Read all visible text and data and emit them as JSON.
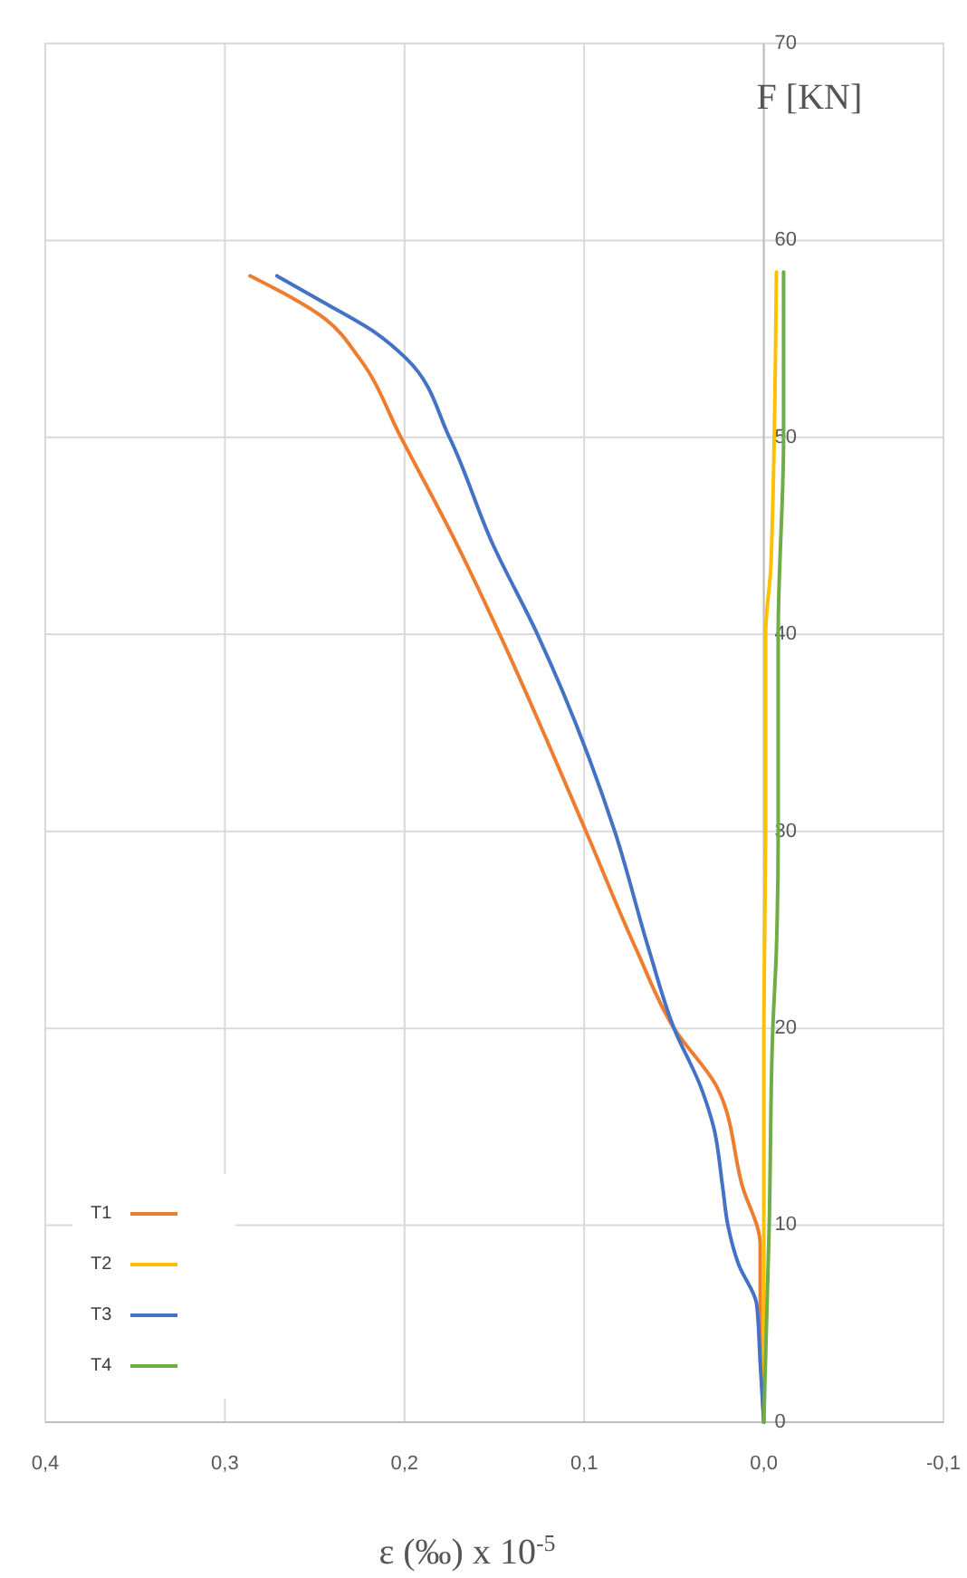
{
  "chart_data": {
    "type": "line",
    "xlabel": "ε (‰) x 10$^{-5}$",
    "ylabel": "F [KN]",
    "xlim": [
      0.4,
      -0.1
    ],
    "ylim": [
      0,
      70
    ],
    "xticks": [
      {
        "value": 0.4,
        "label": "0,4"
      },
      {
        "value": 0.3,
        "label": "0,3"
      },
      {
        "value": 0.2,
        "label": "0,2"
      },
      {
        "value": 0.1,
        "label": "0,1"
      },
      {
        "value": 0,
        "label": "0,0"
      },
      {
        "value": -0.1,
        "label": "-0,1"
      }
    ],
    "yticks": [
      0,
      10,
      20,
      30,
      40,
      50,
      60,
      70
    ],
    "grid": true,
    "legend": "bottom left",
    "marker": "none",
    "line_style": "solid",
    "series": [
      {
        "name": "T1",
        "color": "#ed7d31",
        "x": [
          0,
          0.002,
          0.002,
          0.012,
          0.026,
          0.05,
          0.071,
          0.099,
          0.147,
          0.171,
          0.202,
          0.225,
          0.244,
          0.286
        ],
        "values": [
          0,
          5,
          9,
          12,
          17,
          20,
          24,
          30,
          40,
          44.6,
          50,
          54,
          56,
          58.2
        ]
      },
      {
        "name": "T2",
        "color": "#ffc000",
        "x": [
          0,
          0,
          -0.001,
          -0.001,
          -0.004,
          -0.007
        ],
        "values": [
          0,
          20,
          30,
          40,
          43.6,
          58.4
        ]
      },
      {
        "name": "T3",
        "color": "#4472c4",
        "x": [
          0,
          0.002,
          0.004,
          0.014,
          0.02,
          0.023,
          0.028,
          0.035,
          0.05,
          0.064,
          0.083,
          0.126,
          0.151,
          0.175,
          0.199,
          0.216,
          0.244,
          0.271
        ],
        "values": [
          0,
          3,
          6,
          8,
          10,
          12,
          15,
          17,
          20,
          24,
          30,
          40,
          44.6,
          50,
          54,
          55.3,
          56.8,
          58.2
        ]
      },
      {
        "name": "T4",
        "color": "#70ad47",
        "x": [
          0,
          -0.003,
          -0.005,
          -0.007,
          -0.008,
          -0.008,
          -0.011,
          -0.011
        ],
        "values": [
          0,
          10,
          20,
          24,
          30,
          40,
          50,
          58.4
        ]
      }
    ]
  }
}
